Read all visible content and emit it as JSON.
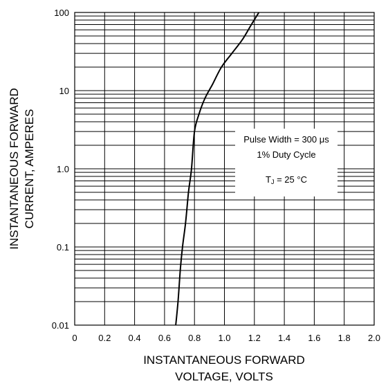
{
  "chart_data": {
    "type": "line",
    "title": "",
    "xlabel_lines": [
      "INSTANTANEOUS FORWARD",
      "VOLTAGE, VOLTS"
    ],
    "ylabel_lines": [
      "INSTANTANEOUS FORWARD",
      "CURRENT,  AMPERES"
    ],
    "xlim": [
      0,
      2.0
    ],
    "ylim": [
      0.01,
      100
    ],
    "yscale": "log",
    "grid": true,
    "x_ticks": [
      0,
      0.2,
      0.4,
      0.6,
      0.8,
      1.0,
      1.2,
      1.4,
      1.6,
      1.8,
      2.0
    ],
    "x_tick_labels": [
      "0",
      "0.2",
      "0.4",
      "0.6",
      "0.8",
      "1.0",
      "1.2",
      "1.4",
      "1.6",
      "1.8",
      "2.0"
    ],
    "y_ticks": [
      0.01,
      0.1,
      1.0,
      10,
      100
    ],
    "y_tick_labels": [
      "0.01",
      "0.1",
      "1.0",
      "10",
      "100"
    ],
    "series": [
      {
        "x": [
          0.675,
          0.69,
          0.705,
          0.72,
          0.74,
          0.76,
          0.78,
          0.8,
          0.83,
          0.87,
          0.92,
          0.98,
          1.05,
          1.12,
          1.18,
          1.23
        ],
        "y": [
          0.01,
          0.02,
          0.05,
          0.1,
          0.2,
          0.5,
          1.0,
          3.0,
          5.0,
          8.0,
          12.0,
          20.0,
          30.0,
          45.0,
          70.0,
          100.0
        ]
      }
    ],
    "annotation": {
      "line1": "Pulse Width = 300  μs",
      "line2": "1% Duty Cycle",
      "tj_T": "T",
      "tj_sub": "J",
      "tj_rest": " = 25 °C"
    }
  }
}
